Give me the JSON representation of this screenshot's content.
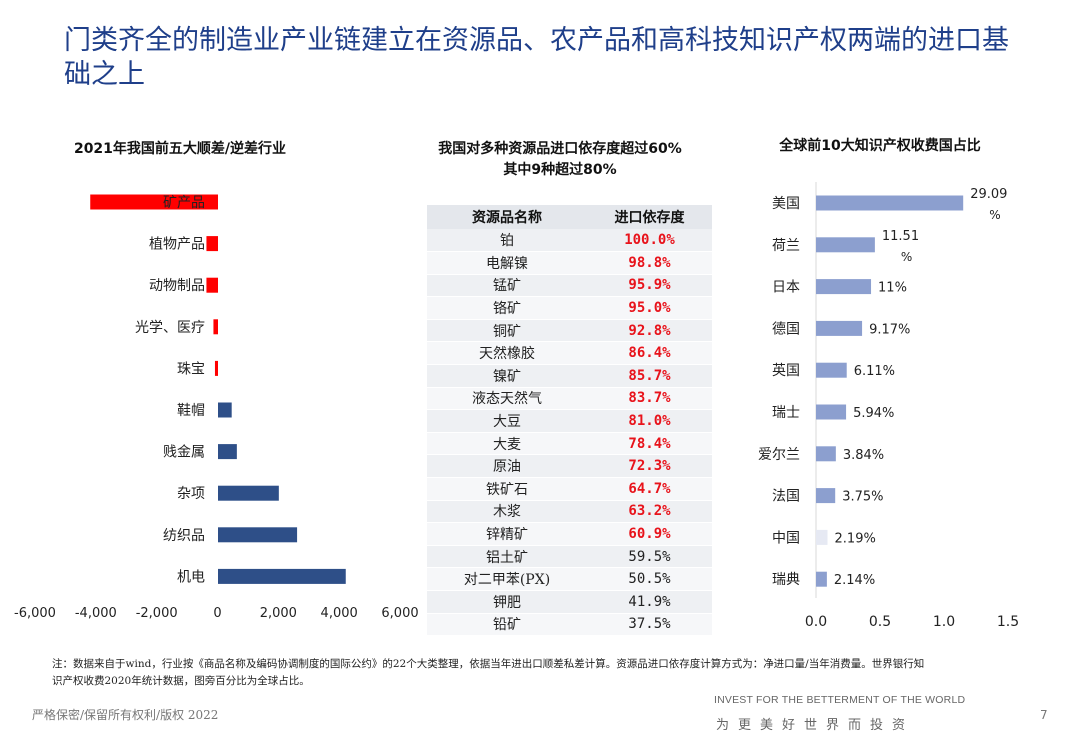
{
  "page": {
    "title": "门类齐全的制造业产业链建立在资源品、农产品和高科技知识产权两端的进口基础之上",
    "note": "注：数据来自于wind，行业按《商品名称及编码协调制度的国际公约》的22个大类整理，依据当年进出口顺差私差计算。资源品进口依存度计算方式为：净进口量/当年消费量。世界银行知识产权收费2020年统计数据，图旁百分比为全球占比。",
    "confidential": "严格保密/保留所有权利/版权 2022",
    "slogan_en": "INVEST FOR THE BETTERMENT OF THE WORLD",
    "slogan_cn": "为更美好世界而投资",
    "page_number": "7"
  },
  "colors": {
    "deficit": "#ff0000",
    "surplus": "#2e4f88",
    "ip": "#8c9fcf",
    "ip_china": "#e6e9f3",
    "highlight": "#e8131b"
  },
  "chart_data": [
    {
      "type": "bar",
      "orientation": "horizontal",
      "title": "2021年我国前五大顺差/逆差行业",
      "categories": [
        "矿产品",
        "植物产品",
        "动物制品",
        "光学、医疗",
        "珠宝",
        "鞋帽",
        "贱金属",
        "杂项",
        "纺织品",
        "机电"
      ],
      "values": [
        -4200,
        -380,
        -380,
        -150,
        -100,
        450,
        620,
        2000,
        2600,
        4200
      ],
      "xlim": [
        -6000,
        6000
      ],
      "xticks": [
        "-6,000",
        "-4,000",
        "-2,000",
        "0",
        "2,000",
        "4,000",
        "6,000"
      ],
      "grid": false
    },
    {
      "type": "table",
      "title_line1": "我国对多种资源品进口依存度超过60%",
      "title_line2": "其中9种超过80%",
      "headers": [
        "资源品名称",
        "进口依存度"
      ],
      "rows": [
        {
          "name": "铂",
          "value": "100.0%",
          "highlight": true
        },
        {
          "name": "电解镍",
          "value": "98.8%",
          "highlight": true
        },
        {
          "name": "锰矿",
          "value": "95.9%",
          "highlight": true
        },
        {
          "name": "铬矿",
          "value": "95.0%",
          "highlight": true
        },
        {
          "name": "铜矿",
          "value": "92.8%",
          "highlight": true
        },
        {
          "name": "天然橡胶",
          "value": "86.4%",
          "highlight": true
        },
        {
          "name": "镍矿",
          "value": "85.7%",
          "highlight": true
        },
        {
          "name": "液态天然气",
          "value": "83.7%",
          "highlight": true
        },
        {
          "name": "大豆",
          "value": "81.0%",
          "highlight": true
        },
        {
          "name": "大麦",
          "value": "78.4%",
          "highlight": true
        },
        {
          "name": "原油",
          "value": "72.3%",
          "highlight": true
        },
        {
          "name": "铁矿石",
          "value": "64.7%",
          "highlight": true
        },
        {
          "name": "木浆",
          "value": "63.2%",
          "highlight": true
        },
        {
          "name": "锌精矿",
          "value": "60.9%",
          "highlight": true
        },
        {
          "name": "铝土矿",
          "value": "59.5%",
          "highlight": false
        },
        {
          "name": "对二甲苯(PX)",
          "value": "50.5%",
          "highlight": false
        },
        {
          "name": "钾肥",
          "value": "41.9%",
          "highlight": false
        },
        {
          "name": "铅矿",
          "value": "37.5%",
          "highlight": false
        }
      ]
    },
    {
      "type": "bar",
      "orientation": "horizontal",
      "title": "全球前10大知识产权收费国占比",
      "categories": [
        "美国",
        "荷兰",
        "日本",
        "德国",
        "英国",
        "瑞士",
        "爱尔兰",
        "法国",
        "中国",
        "瑞典"
      ],
      "values": [
        1.15,
        0.46,
        0.43,
        0.36,
        0.24,
        0.235,
        0.155,
        0.15,
        0.09,
        0.085
      ],
      "labels": [
        [
          "29.09",
          "%"
        ],
        [
          "11.51",
          "%"
        ],
        [
          "11%"
        ],
        [
          "9.17%"
        ],
        [
          "6.11%"
        ],
        [
          "5.94%"
        ],
        [
          "3.84%"
        ],
        [
          "3.75%"
        ],
        [
          "2.19%"
        ],
        [
          "2.14%"
        ]
      ],
      "xlim": [
        0,
        1.5
      ],
      "xticks": [
        "0.0",
        "0.5",
        "1.0",
        "1.5"
      ],
      "grid": false
    }
  ]
}
